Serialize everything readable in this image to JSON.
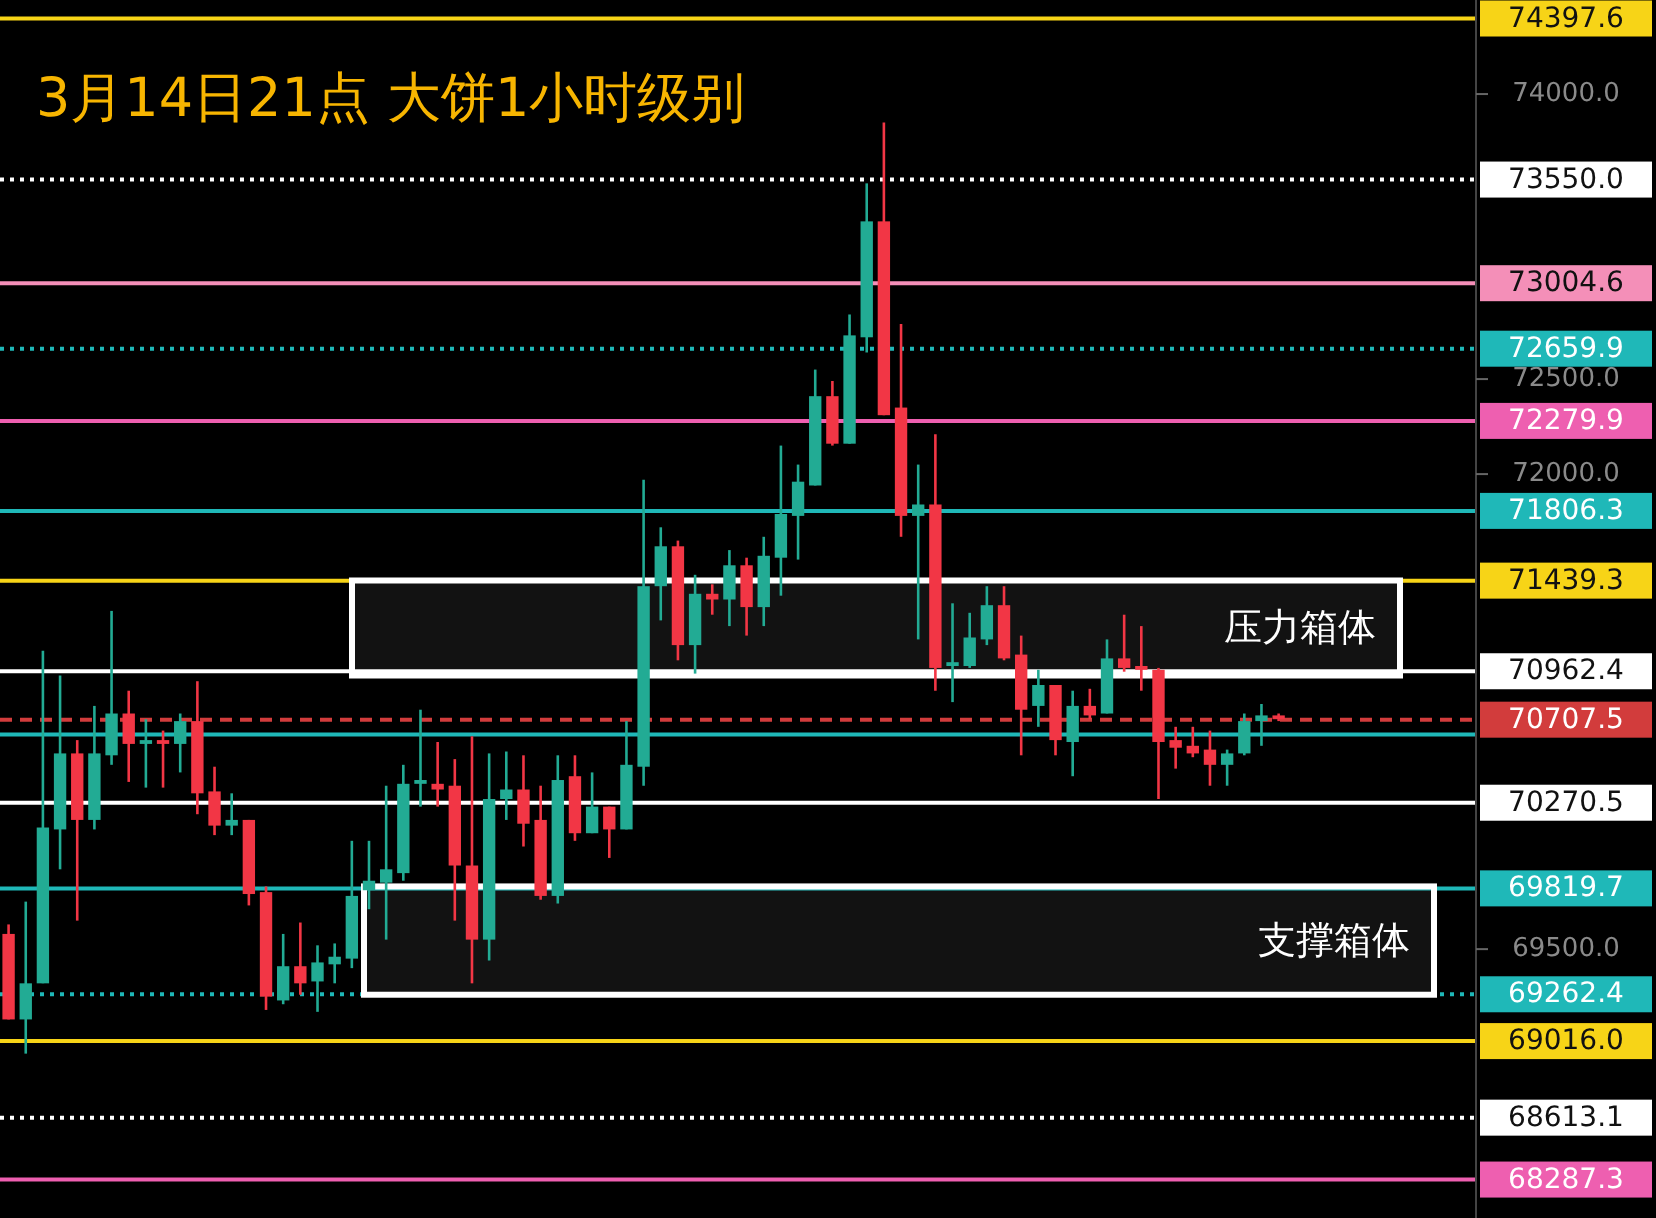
{
  "chart_data": {
    "type": "candlestick",
    "title": "3月14日21点 大饼1小时级别",
    "categories": [
      null,
      null,
      null,
      null,
      null,
      null,
      null,
      null,
      null,
      null,
      null,
      null,
      null,
      null,
      null,
      null,
      null,
      null,
      null,
      null,
      null,
      null,
      null,
      null,
      null,
      null,
      null,
      null,
      null,
      null,
      null,
      null,
      null,
      null,
      null,
      null,
      null,
      null,
      null,
      null,
      null,
      null,
      null,
      null,
      null,
      null,
      null,
      null,
      null,
      null,
      null,
      null,
      null,
      null,
      null,
      null,
      null,
      null,
      null,
      null,
      null,
      null,
      null,
      null,
      null,
      null,
      null,
      null,
      null,
      null,
      null,
      null,
      null,
      null,
      null,
      null,
      null,
      null,
      null,
      null,
      null,
      null,
      null,
      null,
      null,
      null
    ],
    "ohlc": [
      [
        69580,
        69630,
        69130,
        69130
      ],
      [
        69130,
        69750,
        68950,
        69320
      ],
      [
        69320,
        71070,
        69320,
        70140
      ],
      [
        70130,
        70940,
        69920,
        70530
      ],
      [
        70530,
        70600,
        69650,
        70180
      ],
      [
        70180,
        70780,
        70130,
        70530
      ],
      [
        70520,
        71280,
        70470,
        70740
      ],
      [
        70740,
        70860,
        70380,
        70580
      ],
      [
        70580,
        70710,
        70350,
        70600
      ],
      [
        70600,
        70650,
        70350,
        70580
      ],
      [
        70580,
        70740,
        70430,
        70700
      ],
      [
        70700,
        70910,
        70210,
        70320
      ],
      [
        70330,
        70460,
        70100,
        70150
      ],
      [
        70150,
        70320,
        70100,
        70180
      ],
      [
        70180,
        70180,
        69730,
        69790
      ],
      [
        69800,
        69830,
        69180,
        69250
      ],
      [
        69230,
        69580,
        69210,
        69410
      ],
      [
        69410,
        69640,
        69260,
        69320
      ],
      [
        69330,
        69520,
        69170,
        69430
      ],
      [
        69420,
        69530,
        69320,
        69460
      ],
      [
        69450,
        70070,
        69400,
        69780
      ],
      [
        69810,
        70070,
        69710,
        69860
      ],
      [
        69850,
        70360,
        69550,
        69920
      ],
      [
        69900,
        70470,
        69860,
        70370
      ],
      [
        70370,
        70760,
        70250,
        70390
      ],
      [
        70370,
        70590,
        70250,
        70340
      ],
      [
        70360,
        70500,
        69650,
        69940
      ],
      [
        69940,
        70620,
        69320,
        69550
      ],
      [
        69550,
        70530,
        69440,
        70290
      ],
      [
        70290,
        70540,
        70180,
        70340
      ],
      [
        70340,
        70520,
        70040,
        70160
      ],
      [
        70180,
        70360,
        69760,
        69780
      ],
      [
        69780,
        70520,
        69740,
        70390
      ],
      [
        70410,
        70520,
        70070,
        70110
      ],
      [
        70110,
        70430,
        70110,
        70250
      ],
      [
        70250,
        70250,
        69980,
        70130
      ],
      [
        70130,
        70700,
        70130,
        70470
      ],
      [
        70460,
        71970,
        70360,
        71410
      ],
      [
        71410,
        71720,
        71230,
        71620
      ],
      [
        71620,
        71650,
        71020,
        71100
      ],
      [
        71100,
        71470,
        70950,
        71370
      ],
      [
        71370,
        71420,
        71260,
        71340
      ],
      [
        71340,
        71600,
        71200,
        71520
      ],
      [
        71520,
        71560,
        71150,
        71300
      ],
      [
        71300,
        71670,
        71200,
        71570
      ],
      [
        71560,
        72150,
        71360,
        71790
      ],
      [
        71780,
        72050,
        71550,
        71960
      ],
      [
        71940,
        72550,
        71940,
        72410
      ],
      [
        72410,
        72490,
        72150,
        72160
      ],
      [
        72160,
        72840,
        72160,
        72730
      ],
      [
        72720,
        73530,
        72640,
        73330
      ],
      [
        73330,
        73850,
        72310,
        72310
      ],
      [
        72350,
        72790,
        71670,
        71780
      ],
      [
        71780,
        72050,
        71130,
        71840
      ],
      [
        71840,
        72210,
        70860,
        70980
      ],
      [
        70990,
        71320,
        70800,
        71010
      ],
      [
        70990,
        71270,
        70980,
        71140
      ],
      [
        71130,
        71410,
        71100,
        71310
      ],
      [
        71310,
        71410,
        71020,
        71030
      ],
      [
        71050,
        71150,
        70520,
        70760
      ],
      [
        70780,
        70970,
        70670,
        70890
      ],
      [
        70890,
        70890,
        70520,
        70600
      ],
      [
        70590,
        70860,
        70410,
        70780
      ],
      [
        70780,
        70870,
        70710,
        70730
      ],
      [
        70740,
        71130,
        70740,
        71030
      ],
      [
        71030,
        71260,
        70960,
        70980
      ],
      [
        70990,
        71200,
        70860,
        70970
      ],
      [
        70970,
        70980,
        70290,
        70590
      ],
      [
        70600,
        70670,
        70450,
        70560
      ],
      [
        70570,
        70670,
        70510,
        70530
      ],
      [
        70550,
        70650,
        70360,
        70470
      ],
      [
        70470,
        70550,
        70360,
        70530
      ],
      [
        70530,
        70740,
        70520,
        70700
      ],
      [
        70700,
        70790,
        70570,
        70730
      ],
      [
        70730,
        70740,
        70700,
        70710
      ],
      null,
      null,
      null,
      null,
      null,
      null,
      null,
      null,
      null,
      null,
      null
    ],
    "ylim": [
      68085,
      74495
    ],
    "yticks": [
      {
        "value": 74000,
        "label": "74000.0"
      },
      {
        "value": 72500,
        "label": "72500.0"
      },
      {
        "value": 72000,
        "label": "72000.0"
      },
      {
        "value": 69500,
        "label": "69500.0"
      }
    ],
    "ref_lines": [
      {
        "axis": "y",
        "value": 74397.6,
        "label": "74397.6",
        "color": "#f7d417",
        "line_style": "solid"
      },
      {
        "axis": "y",
        "value": 73550.0,
        "label": "73550.0",
        "color": "#ffffff",
        "line_style": "dotted"
      },
      {
        "axis": "y",
        "value": 73004.6,
        "label": "73004.6",
        "color": "#f48fb8",
        "line_style": "solid"
      },
      {
        "axis": "y",
        "value": 72659.9,
        "label": "72659.9",
        "color": "#1fb8b8",
        "line_style": "dotted"
      },
      {
        "axis": "y",
        "value": 72279.9,
        "label": "72279.9",
        "color": "#ee5fb0",
        "line_style": "solid"
      },
      {
        "axis": "y",
        "value": 71806.3,
        "label": "71806.3",
        "color": "#1fb8b8",
        "line_style": "solid"
      },
      {
        "axis": "y",
        "value": 71439.3,
        "label": "71439.3",
        "color": "#f7d417",
        "line_style": "solid"
      },
      {
        "axis": "y",
        "value": 70962.4,
        "label": "70962.4",
        "color": "#ffffff",
        "line_style": "solid"
      },
      {
        "axis": "y",
        "value": 70707.5,
        "label": "70707.5",
        "color": "#d23c3c",
        "line_style": "dashed"
      },
      {
        "axis": "y",
        "value": 70630,
        "color": "#1fb8b8",
        "line_style": "solid"
      },
      {
        "axis": "y",
        "value": 70270.5,
        "label": "70270.5",
        "color": "#ffffff",
        "line_style": "solid"
      },
      {
        "axis": "y",
        "value": 69819.7,
        "label": "69819.7",
        "color": "#1fb8b8",
        "line_style": "solid"
      },
      {
        "axis": "y",
        "value": 69262.4,
        "label": "69262.4",
        "color": "#1fb8b8",
        "line_style": "dotted"
      },
      {
        "axis": "y",
        "value": 69016.0,
        "label": "69016.0",
        "color": "#f7d417",
        "line_style": "solid"
      },
      {
        "axis": "y",
        "value": 68613.1,
        "label": "68613.1",
        "color": "#ffffff",
        "line_style": "dotted"
      },
      {
        "axis": "y",
        "value": 68287.3,
        "label": "68287.3",
        "color": "#ee5fb0",
        "line_style": "solid"
      }
    ],
    "bands": [
      {
        "axis": "y",
        "from": 70940,
        "to": 71440,
        "label": "压力箱体",
        "color": "#ffffff"
      },
      {
        "axis": "y",
        "from": 69260,
        "to": 69830,
        "label": "支撑箱体",
        "color": "#ffffff"
      }
    ],
    "grid": false
  }
}
